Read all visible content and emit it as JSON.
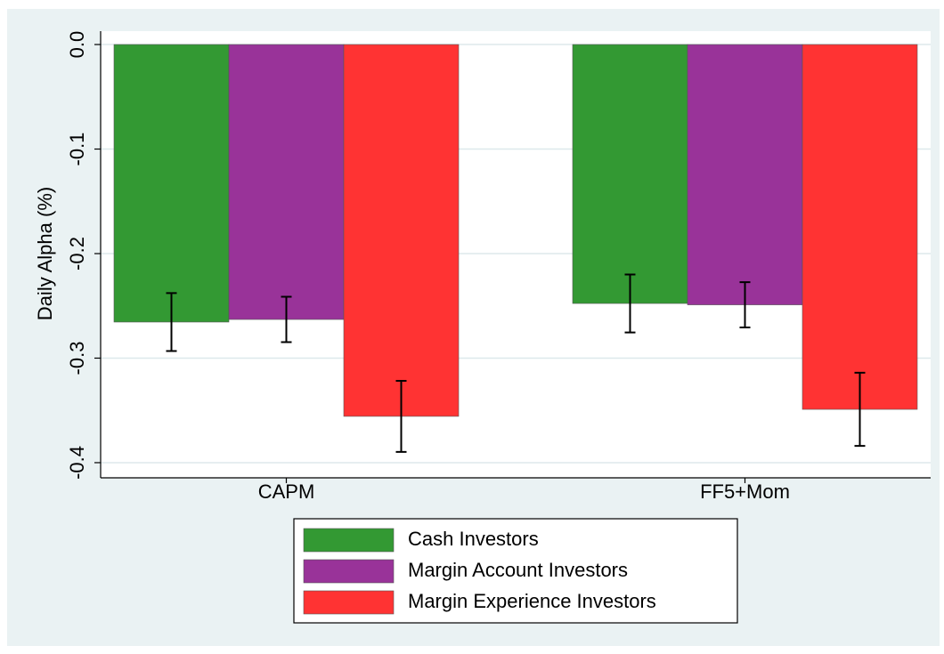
{
  "chart_data": {
    "type": "bar",
    "y_label": "Daily Alpha (%)",
    "categories": [
      "CAPM",
      "FF5+Mom"
    ],
    "series": [
      {
        "name": "Cash Investors",
        "color": "#339933",
        "values": [
          -0.2655,
          -0.2477
        ],
        "errors": [
          0.0277,
          0.0277
        ]
      },
      {
        "name": "Margin Account Investors",
        "color": "#993399",
        "values": [
          -0.263,
          -0.249
        ],
        "errors": [
          0.0217,
          0.0217
        ]
      },
      {
        "name": "Margin Experience Investors",
        "color": "#ff3333",
        "values": [
          -0.3557,
          -0.349
        ],
        "errors": [
          0.034,
          0.035
        ]
      }
    ],
    "ylim": [
      -0.4145,
      0.0128
    ],
    "yticks": [
      {
        "value": 0,
        "label": "0.0"
      },
      -0.1,
      -0.2,
      -0.3,
      -0.4
    ],
    "grid": true
  }
}
